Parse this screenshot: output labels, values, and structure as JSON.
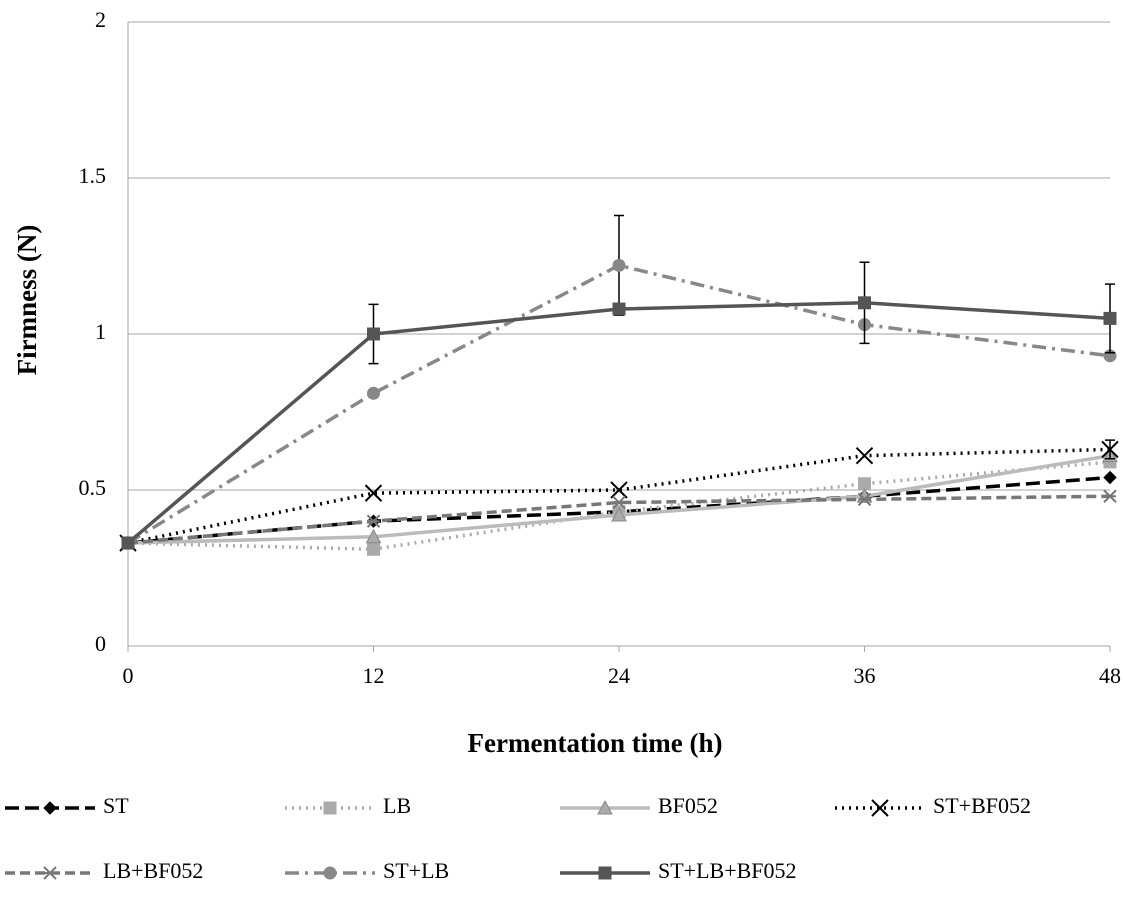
{
  "chart_data": {
    "type": "line",
    "x_label": "Fermentation time (h)",
    "y_label": "Firmness (N)",
    "x": [
      0,
      12,
      24,
      36,
      48
    ],
    "xlim": [
      0,
      48
    ],
    "xticks": [
      0,
      12,
      24,
      36,
      48
    ],
    "ylim": [
      0,
      2
    ],
    "yticks": [
      0,
      0.5,
      1,
      1.5,
      2
    ],
    "grid": true,
    "series": [
      {
        "name": "ST",
        "color": "#000000",
        "dash": "14 6",
        "marker": "diamond",
        "values": [
          0.33,
          0.4,
          0.43,
          0.48,
          0.54
        ]
      },
      {
        "name": "LB",
        "color": "#aaaaaa",
        "dash": "2 5",
        "marker": "square",
        "values": [
          0.33,
          0.31,
          0.43,
          0.52,
          0.59
        ]
      },
      {
        "name": "BF052",
        "color": "#bbbbbb",
        "dash": "none",
        "marker": "triangle",
        "values": [
          0.33,
          0.35,
          0.42,
          0.48,
          0.61
        ]
      },
      {
        "name": "ST+BF052",
        "color": "#000000",
        "dash": "2 5",
        "marker": "x",
        "values": [
          0.33,
          0.49,
          0.5,
          0.61,
          0.63
        ],
        "errors": [
          null,
          null,
          null,
          null,
          0.03
        ]
      },
      {
        "name": "LB+BF052",
        "color": "#777777",
        "dash": "10 5",
        "marker": "star",
        "values": [
          0.33,
          0.4,
          0.46,
          0.47,
          0.48
        ]
      },
      {
        "name": "ST+LB",
        "color": "#888888",
        "dash": "14 6 3 6",
        "marker": "circle",
        "values": [
          0.33,
          0.81,
          1.22,
          1.03,
          0.93
        ],
        "errors": [
          null,
          null,
          0.16,
          null,
          null
        ]
      },
      {
        "name": "ST+LB+BF052",
        "color": "#555555",
        "dash": "none",
        "marker": "square",
        "values": [
          0.33,
          1.0,
          1.08,
          1.1,
          1.05
        ],
        "errors": [
          null,
          0.095,
          null,
          0.13,
          0.11
        ]
      }
    ]
  }
}
